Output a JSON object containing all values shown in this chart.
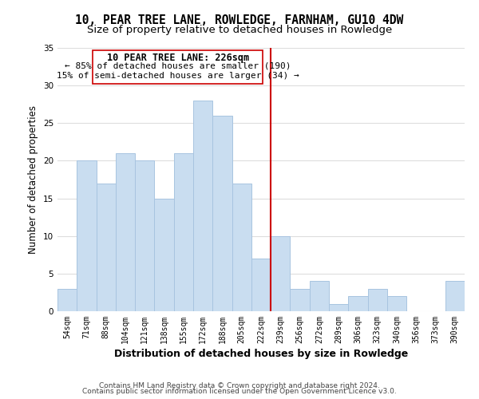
{
  "title": "10, PEAR TREE LANE, ROWLEDGE, FARNHAM, GU10 4DW",
  "subtitle": "Size of property relative to detached houses in Rowledge",
  "xlabel": "Distribution of detached houses by size in Rowledge",
  "ylabel": "Number of detached properties",
  "bin_labels": [
    "54sqm",
    "71sqm",
    "88sqm",
    "104sqm",
    "121sqm",
    "138sqm",
    "155sqm",
    "172sqm",
    "188sqm",
    "205sqm",
    "222sqm",
    "239sqm",
    "256sqm",
    "272sqm",
    "289sqm",
    "306sqm",
    "323sqm",
    "340sqm",
    "356sqm",
    "373sqm",
    "390sqm"
  ],
  "bar_values": [
    3,
    20,
    17,
    21,
    20,
    15,
    21,
    28,
    26,
    17,
    7,
    10,
    3,
    4,
    1,
    2,
    3,
    2,
    0,
    0,
    4
  ],
  "bar_color": "#c9ddf0",
  "bar_edge_color": "#a8c4e0",
  "property_line_x": 10.5,
  "property_line_color": "#cc0000",
  "annotation_title": "10 PEAR TREE LANE: 226sqm",
  "annotation_line1": "← 85% of detached houses are smaller (190)",
  "annotation_line2": "15% of semi-detached houses are larger (34) →",
  "annotation_box_color": "#ffffff",
  "annotation_box_edge": "#cc0000",
  "ylim": [
    0,
    35
  ],
  "yticks": [
    0,
    5,
    10,
    15,
    20,
    25,
    30,
    35
  ],
  "footer1": "Contains HM Land Registry data © Crown copyright and database right 2024.",
  "footer2": "Contains public sector information licensed under the Open Government Licence v3.0.",
  "background_color": "#ffffff",
  "grid_color": "#dddddd",
  "title_fontsize": 10.5,
  "subtitle_fontsize": 9.5,
  "xlabel_fontsize": 9,
  "ylabel_fontsize": 8.5,
  "tick_fontsize": 7,
  "annotation_title_fontsize": 8.5,
  "annotation_text_fontsize": 8,
  "footer_fontsize": 6.5
}
